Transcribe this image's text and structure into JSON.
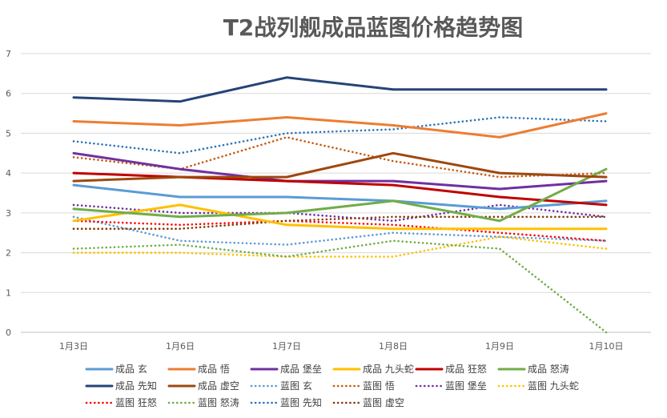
{
  "chart_data": {
    "type": "line",
    "title": "T2战列舰成品蓝图价格趋势图",
    "xlabel": "",
    "ylabel": "",
    "categories": [
      "1月3日",
      "1月6日",
      "1月7日",
      "1月8日",
      "1月9日",
      "1月10日"
    ],
    "ylim": [
      0,
      7
    ],
    "yticks": [
      0,
      1,
      2,
      3,
      4,
      5,
      6,
      7
    ],
    "grid": true,
    "legend_position": "bottom",
    "series": [
      {
        "name": "成品 玄",
        "color": "#5B9BD5",
        "style": "solid",
        "values": [
          3.7,
          3.4,
          3.4,
          3.3,
          3.1,
          3.3
        ]
      },
      {
        "name": "成品 悟",
        "color": "#ED7D31",
        "style": "solid",
        "values": [
          5.3,
          5.2,
          5.4,
          5.2,
          4.9,
          5.5
        ]
      },
      {
        "name": "成品 堡垒",
        "color": "#7030A0",
        "style": "solid",
        "values": [
          4.5,
          4.1,
          3.8,
          3.8,
          3.6,
          3.8
        ]
      },
      {
        "name": "成品 九头蛇",
        "color": "#FFC000",
        "style": "solid",
        "values": [
          2.8,
          3.2,
          2.7,
          2.6,
          2.6,
          2.6
        ]
      },
      {
        "name": "成品 狂怒",
        "color": "#C00000",
        "style": "solid",
        "values": [
          4.0,
          3.9,
          3.8,
          3.7,
          3.4,
          3.2
        ]
      },
      {
        "name": "成品 怒涛",
        "color": "#70AD47",
        "style": "solid",
        "values": [
          3.1,
          2.9,
          3.0,
          3.3,
          2.8,
          4.1
        ]
      },
      {
        "name": "成品 先知",
        "color": "#264478",
        "style": "solid",
        "values": [
          5.9,
          5.8,
          6.4,
          6.1,
          6.1,
          6.1
        ]
      },
      {
        "name": "成品 虚空",
        "color": "#9E480E",
        "style": "solid",
        "values": [
          3.8,
          3.9,
          3.9,
          4.5,
          4.0,
          3.9
        ]
      },
      {
        "name": "蓝图 玄",
        "color": "#5B9BD5",
        "style": "dotted",
        "values": [
          2.9,
          2.3,
          2.2,
          2.5,
          2.4,
          2.3
        ]
      },
      {
        "name": "蓝图 悟",
        "color": "#C55A11",
        "style": "dotted",
        "values": [
          4.4,
          4.1,
          4.9,
          4.3,
          3.9,
          4.0
        ]
      },
      {
        "name": "蓝图 堡垒",
        "color": "#7030A0",
        "style": "dotted",
        "values": [
          3.2,
          3.0,
          3.0,
          2.8,
          3.2,
          2.9
        ]
      },
      {
        "name": "蓝图 九头蛇",
        "color": "#FFC000",
        "style": "dotted",
        "values": [
          2.0,
          2.0,
          1.9,
          1.9,
          2.4,
          2.1
        ]
      },
      {
        "name": "蓝图 狂怒",
        "color": "#FF0000",
        "style": "dotted",
        "values": [
          2.8,
          2.7,
          2.8,
          2.7,
          2.5,
          2.3
        ]
      },
      {
        "name": "蓝图 怒涛",
        "color": "#70AD47",
        "style": "dotted",
        "values": [
          2.1,
          2.2,
          1.9,
          2.3,
          2.1,
          0.0
        ]
      },
      {
        "name": "蓝图 先知",
        "color": "#2E75B6",
        "style": "dotted",
        "values": [
          4.8,
          4.5,
          5.0,
          5.1,
          5.4,
          5.3
        ]
      },
      {
        "name": "蓝图 虚空",
        "color": "#843C0C",
        "style": "dotted",
        "values": [
          2.6,
          2.6,
          2.8,
          2.9,
          2.9,
          2.9
        ]
      }
    ]
  }
}
